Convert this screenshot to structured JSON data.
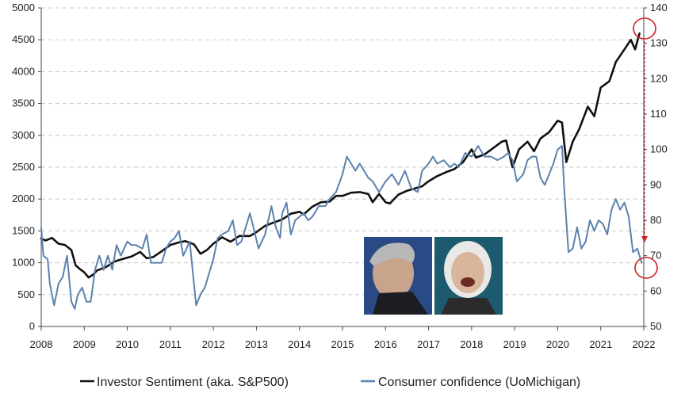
{
  "chart_data": {
    "type": "line",
    "title": "",
    "x_ticks": [
      "2008",
      "2009",
      "2010",
      "2011",
      "2012",
      "2013",
      "2014",
      "2015",
      "2016",
      "2017",
      "2018",
      "2019",
      "2020",
      "2021",
      "2022"
    ],
    "xlim": [
      2008,
      2022
    ],
    "y_left": {
      "lim": [
        0,
        5000
      ],
      "ticks": [
        "0",
        "500",
        "1000",
        "1500",
        "2000",
        "2500",
        "3000",
        "3500",
        "4000",
        "4500",
        "5000"
      ]
    },
    "y_right": {
      "lim": [
        50,
        140
      ],
      "ticks": [
        "50",
        "60",
        "70",
        "80",
        "90",
        "100",
        "110",
        "120",
        "130",
        "140"
      ]
    },
    "grid": "horizontal dashed",
    "legend_position": "bottom",
    "series": [
      {
        "name": "Investor Sentiment (aka. S&P500)",
        "axis": "left",
        "color": "#111111",
        "points": [
          [
            2008.0,
            1380
          ],
          [
            2008.1,
            1350
          ],
          [
            2008.25,
            1390
          ],
          [
            2008.4,
            1300
          ],
          [
            2008.55,
            1280
          ],
          [
            2008.7,
            1200
          ],
          [
            2008.8,
            960
          ],
          [
            2008.9,
            900
          ],
          [
            2009.0,
            850
          ],
          [
            2009.1,
            770
          ],
          [
            2009.2,
            810
          ],
          [
            2009.3,
            880
          ],
          [
            2009.5,
            930
          ],
          [
            2009.7,
            1020
          ],
          [
            2009.9,
            1060
          ],
          [
            2010.1,
            1100
          ],
          [
            2010.3,
            1170
          ],
          [
            2010.45,
            1070
          ],
          [
            2010.6,
            1090
          ],
          [
            2010.8,
            1180
          ],
          [
            2011.0,
            1280
          ],
          [
            2011.2,
            1320
          ],
          [
            2011.35,
            1340
          ],
          [
            2011.55,
            1290
          ],
          [
            2011.7,
            1140
          ],
          [
            2011.85,
            1200
          ],
          [
            2012.0,
            1300
          ],
          [
            2012.2,
            1400
          ],
          [
            2012.4,
            1330
          ],
          [
            2012.6,
            1420
          ],
          [
            2012.85,
            1420
          ],
          [
            2013.0,
            1480
          ],
          [
            2013.2,
            1580
          ],
          [
            2013.4,
            1630
          ],
          [
            2013.6,
            1680
          ],
          [
            2013.8,
            1770
          ],
          [
            2014.0,
            1800
          ],
          [
            2014.1,
            1760
          ],
          [
            2014.3,
            1880
          ],
          [
            2014.5,
            1950
          ],
          [
            2014.7,
            1960
          ],
          [
            2014.85,
            2050
          ],
          [
            2015.0,
            2050
          ],
          [
            2015.2,
            2100
          ],
          [
            2015.4,
            2110
          ],
          [
            2015.6,
            2080
          ],
          [
            2015.7,
            1950
          ],
          [
            2015.85,
            2080
          ],
          [
            2016.0,
            1950
          ],
          [
            2016.1,
            1930
          ],
          [
            2016.3,
            2070
          ],
          [
            2016.5,
            2130
          ],
          [
            2016.7,
            2170
          ],
          [
            2016.85,
            2200
          ],
          [
            2017.0,
            2280
          ],
          [
            2017.2,
            2360
          ],
          [
            2017.4,
            2420
          ],
          [
            2017.6,
            2470
          ],
          [
            2017.8,
            2580
          ],
          [
            2018.0,
            2780
          ],
          [
            2018.1,
            2650
          ],
          [
            2018.3,
            2700
          ],
          [
            2018.5,
            2800
          ],
          [
            2018.7,
            2900
          ],
          [
            2018.8,
            2920
          ],
          [
            2018.95,
            2500
          ],
          [
            2019.1,
            2780
          ],
          [
            2019.3,
            2900
          ],
          [
            2019.45,
            2750
          ],
          [
            2019.6,
            2950
          ],
          [
            2019.8,
            3050
          ],
          [
            2020.0,
            3230
          ],
          [
            2020.1,
            3200
          ],
          [
            2020.2,
            2580
          ],
          [
            2020.35,
            2900
          ],
          [
            2020.5,
            3100
          ],
          [
            2020.7,
            3450
          ],
          [
            2020.85,
            3300
          ],
          [
            2021.0,
            3750
          ],
          [
            2021.2,
            3850
          ],
          [
            2021.35,
            4150
          ],
          [
            2021.5,
            4300
          ],
          [
            2021.7,
            4500
          ],
          [
            2021.8,
            4350
          ],
          [
            2021.9,
            4600
          ]
        ]
      },
      {
        "name": "Consumer confidence (UoMichigan)",
        "axis": "right",
        "color": "#5b82ad",
        "points": [
          [
            2008.0,
            78
          ],
          [
            2008.05,
            70
          ],
          [
            2008.15,
            69
          ],
          [
            2008.2,
            62
          ],
          [
            2008.3,
            56
          ],
          [
            2008.4,
            62
          ],
          [
            2008.5,
            64
          ],
          [
            2008.6,
            70
          ],
          [
            2008.7,
            57
          ],
          [
            2008.78,
            55
          ],
          [
            2008.85,
            59
          ],
          [
            2008.95,
            61
          ],
          [
            2009.05,
            57
          ],
          [
            2009.15,
            57
          ],
          [
            2009.25,
            66
          ],
          [
            2009.35,
            70
          ],
          [
            2009.45,
            66
          ],
          [
            2009.55,
            70
          ],
          [
            2009.65,
            66
          ],
          [
            2009.75,
            73
          ],
          [
            2009.85,
            70
          ],
          [
            2010.0,
            74
          ],
          [
            2010.1,
            73
          ],
          [
            2010.2,
            73
          ],
          [
            2010.35,
            72
          ],
          [
            2010.45,
            76
          ],
          [
            2010.55,
            68
          ],
          [
            2010.7,
            68
          ],
          [
            2010.8,
            68
          ],
          [
            2010.9,
            72
          ],
          [
            2011.0,
            74
          ],
          [
            2011.1,
            75
          ],
          [
            2011.2,
            77
          ],
          [
            2011.3,
            70
          ],
          [
            2011.45,
            74
          ],
          [
            2011.6,
            56
          ],
          [
            2011.7,
            59
          ],
          [
            2011.8,
            61
          ],
          [
            2011.9,
            65
          ],
          [
            2012.0,
            69
          ],
          [
            2012.1,
            75
          ],
          [
            2012.2,
            76
          ],
          [
            2012.35,
            77
          ],
          [
            2012.45,
            80
          ],
          [
            2012.55,
            73
          ],
          [
            2012.65,
            74
          ],
          [
            2012.75,
            78
          ],
          [
            2012.85,
            82
          ],
          [
            2012.95,
            77
          ],
          [
            2013.05,
            72
          ],
          [
            2013.2,
            76
          ],
          [
            2013.35,
            84
          ],
          [
            2013.45,
            78
          ],
          [
            2013.55,
            75
          ],
          [
            2013.6,
            82
          ],
          [
            2013.7,
            85
          ],
          [
            2013.8,
            76
          ],
          [
            2013.9,
            80
          ],
          [
            2014.0,
            81
          ],
          [
            2014.1,
            82
          ],
          [
            2014.2,
            80
          ],
          [
            2014.3,
            81
          ],
          [
            2014.45,
            84
          ],
          [
            2014.6,
            84
          ],
          [
            2014.7,
            86
          ],
          [
            2014.85,
            88
          ],
          [
            2015.0,
            93
          ],
          [
            2015.1,
            98
          ],
          [
            2015.2,
            96
          ],
          [
            2015.3,
            94
          ],
          [
            2015.4,
            96
          ],
          [
            2015.5,
            94
          ],
          [
            2015.6,
            92
          ],
          [
            2015.7,
            91
          ],
          [
            2015.85,
            88
          ],
          [
            2016.0,
            91
          ],
          [
            2016.15,
            93
          ],
          [
            2016.3,
            90
          ],
          [
            2016.45,
            94
          ],
          [
            2016.6,
            89
          ],
          [
            2016.75,
            88
          ],
          [
            2016.85,
            94
          ],
          [
            2017.0,
            96
          ],
          [
            2017.1,
            98
          ],
          [
            2017.2,
            96
          ],
          [
            2017.35,
            97
          ],
          [
            2017.5,
            95
          ],
          [
            2017.6,
            96
          ],
          [
            2017.7,
            95
          ],
          [
            2017.85,
            99
          ],
          [
            2018.0,
            98
          ],
          [
            2018.15,
            101
          ],
          [
            2018.3,
            98
          ],
          [
            2018.45,
            98
          ],
          [
            2018.6,
            97
          ],
          [
            2018.75,
            98
          ],
          [
            2018.85,
            99
          ],
          [
            2018.95,
            97
          ],
          [
            2019.05,
            91
          ],
          [
            2019.2,
            93
          ],
          [
            2019.3,
            97
          ],
          [
            2019.4,
            98
          ],
          [
            2019.5,
            98
          ],
          [
            2019.6,
            92
          ],
          [
            2019.7,
            90
          ],
          [
            2019.8,
            93
          ],
          [
            2019.9,
            96
          ],
          [
            2020.0,
            100
          ],
          [
            2020.1,
            101
          ],
          [
            2020.15,
            89
          ],
          [
            2020.25,
            71
          ],
          [
            2020.35,
            72
          ],
          [
            2020.45,
            78
          ],
          [
            2020.55,
            72
          ],
          [
            2020.65,
            74
          ],
          [
            2020.75,
            80
          ],
          [
            2020.85,
            77
          ],
          [
            2020.95,
            80
          ],
          [
            2021.05,
            79
          ],
          [
            2021.15,
            76
          ],
          [
            2021.25,
            83
          ],
          [
            2021.35,
            86
          ],
          [
            2021.45,
            83
          ],
          [
            2021.55,
            85
          ],
          [
            2021.65,
            81
          ],
          [
            2021.75,
            71
          ],
          [
            2021.85,
            72
          ],
          [
            2021.95,
            68
          ]
        ]
      }
    ]
  }
}
